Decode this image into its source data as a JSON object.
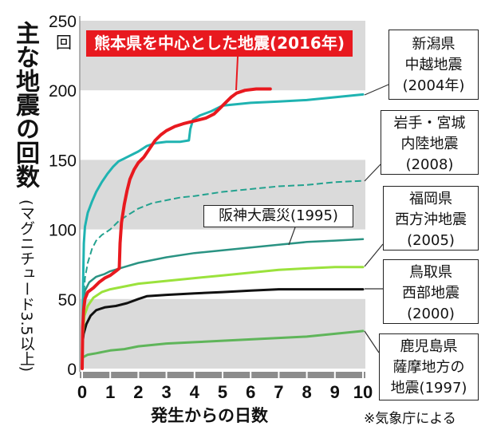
{
  "chart_data": {
    "type": "line",
    "y_label": "主な地震の回数",
    "y_label_note": "(マグニチュード3.5以上)",
    "y_unit": "回",
    "x_label": "発生からの日数",
    "source": "※気象庁による",
    "xlim": [
      0,
      10
    ],
    "ylim": [
      0,
      250
    ],
    "x_ticks": [
      0,
      1,
      2,
      3,
      4,
      5,
      6,
      7,
      8,
      9,
      10
    ],
    "y_ticks": [
      0,
      50,
      100,
      150,
      200,
      250
    ],
    "grid": false,
    "shaded_bands": [
      [
        0,
        50
      ],
      [
        100,
        150
      ],
      [
        200,
        250
      ]
    ],
    "band_color": "#dadada",
    "series": [
      {
        "name": "熊本県を中心とした地震(2016年)",
        "color": "#e8191f",
        "line_style": "solid",
        "points": [
          [
            0,
            0
          ],
          [
            0.02,
            30
          ],
          [
            0.05,
            42
          ],
          [
            0.1,
            50
          ],
          [
            0.2,
            55
          ],
          [
            0.4,
            58
          ],
          [
            0.6,
            62
          ],
          [
            0.8,
            65
          ],
          [
            1.0,
            67
          ],
          [
            1.2,
            70
          ],
          [
            1.32,
            72
          ],
          [
            1.35,
            90
          ],
          [
            1.4,
            105
          ],
          [
            1.5,
            118
          ],
          [
            1.6,
            128
          ],
          [
            1.7,
            136
          ],
          [
            1.85,
            143
          ],
          [
            2.0,
            148
          ],
          [
            2.2,
            152
          ],
          [
            2.4,
            158
          ],
          [
            2.6,
            164
          ],
          [
            2.8,
            168
          ],
          [
            3.0,
            171
          ],
          [
            3.3,
            174
          ],
          [
            3.6,
            176
          ],
          [
            4.0,
            178
          ],
          [
            4.4,
            180
          ],
          [
            4.7,
            183
          ],
          [
            4.9,
            187
          ],
          [
            5.1,
            191
          ],
          [
            5.3,
            195
          ],
          [
            5.5,
            198
          ],
          [
            5.8,
            200
          ],
          [
            6.2,
            201
          ],
          [
            6.7,
            201
          ]
        ]
      },
      {
        "name": "新潟県\n中越地震\n(2004年)",
        "color": "#1fb3b1",
        "line_style": "solid",
        "points": [
          [
            0,
            0
          ],
          [
            0.03,
            60
          ],
          [
            0.06,
            90
          ],
          [
            0.1,
            102
          ],
          [
            0.2,
            112
          ],
          [
            0.35,
            120
          ],
          [
            0.5,
            127
          ],
          [
            0.7,
            134
          ],
          [
            0.9,
            140
          ],
          [
            1.1,
            145
          ],
          [
            1.3,
            149
          ],
          [
            1.5,
            151
          ],
          [
            1.8,
            154
          ],
          [
            2.0,
            156
          ],
          [
            2.3,
            160
          ],
          [
            2.6,
            162
          ],
          [
            3.0,
            163
          ],
          [
            3.5,
            163
          ],
          [
            3.8,
            164
          ],
          [
            3.85,
            172
          ],
          [
            3.95,
            179
          ],
          [
            4.2,
            182
          ],
          [
            4.6,
            185
          ],
          [
            5.0,
            189
          ],
          [
            6.0,
            191
          ],
          [
            7.0,
            192
          ],
          [
            8.0,
            193
          ],
          [
            9.0,
            195
          ],
          [
            10,
            197
          ]
        ]
      },
      {
        "name": "岩手・宮城\n内陸地震\n(2008)",
        "color": "#23a28f",
        "line_style": "dashed",
        "points": [
          [
            0,
            0
          ],
          [
            0.02,
            30
          ],
          [
            0.05,
            50
          ],
          [
            0.1,
            65
          ],
          [
            0.2,
            76
          ],
          [
            0.35,
            86
          ],
          [
            0.5,
            92
          ],
          [
            0.7,
            96
          ],
          [
            1.0,
            100
          ],
          [
            1.3,
            106
          ],
          [
            1.6,
            110
          ],
          [
            2.0,
            115
          ],
          [
            2.5,
            119
          ],
          [
            3.0,
            121
          ],
          [
            3.5,
            123
          ],
          [
            4.0,
            124
          ],
          [
            5.0,
            127
          ],
          [
            6.0,
            129
          ],
          [
            7.0,
            131
          ],
          [
            8.0,
            132
          ],
          [
            9.0,
            134
          ],
          [
            10,
            135
          ]
        ]
      },
      {
        "name": "阪神大震災(1995)",
        "color": "#2a9383",
        "line_style": "solid",
        "points": [
          [
            0,
            0
          ],
          [
            0.02,
            30
          ],
          [
            0.05,
            48
          ],
          [
            0.1,
            56
          ],
          [
            0.25,
            62
          ],
          [
            0.5,
            66
          ],
          [
            0.8,
            68
          ],
          [
            1.0,
            70
          ],
          [
            1.5,
            73
          ],
          [
            2.0,
            76
          ],
          [
            2.5,
            78
          ],
          [
            3.0,
            80
          ],
          [
            4.0,
            83
          ],
          [
            5.0,
            85
          ],
          [
            6.0,
            87
          ],
          [
            7.0,
            89
          ],
          [
            8.0,
            91
          ],
          [
            9.0,
            92
          ],
          [
            10,
            93
          ]
        ]
      },
      {
        "name": "福岡県\n西方沖地震\n(2005)",
        "color": "#9be23c",
        "line_style": "solid",
        "points": [
          [
            0,
            0
          ],
          [
            0.03,
            25
          ],
          [
            0.08,
            38
          ],
          [
            0.2,
            45
          ],
          [
            0.4,
            51
          ],
          [
            0.7,
            55
          ],
          [
            1.0,
            57
          ],
          [
            1.5,
            59
          ],
          [
            2.0,
            61
          ],
          [
            3.0,
            63
          ],
          [
            4.0,
            65
          ],
          [
            5.0,
            67
          ],
          [
            6.0,
            69
          ],
          [
            7.0,
            71
          ],
          [
            8.0,
            72
          ],
          [
            9.0,
            73
          ],
          [
            10,
            73
          ]
        ]
      },
      {
        "name": "鳥取県\n西部地震\n(2000)",
        "color": "#111111",
        "line_style": "solid",
        "points": [
          [
            0,
            0
          ],
          [
            0.01,
            18
          ],
          [
            0.05,
            25
          ],
          [
            0.15,
            32
          ],
          [
            0.3,
            38
          ],
          [
            0.5,
            42
          ],
          [
            0.8,
            44
          ],
          [
            1.2,
            45
          ],
          [
            1.6,
            47
          ],
          [
            2.0,
            50
          ],
          [
            2.3,
            52
          ],
          [
            3.0,
            53
          ],
          [
            4.0,
            54
          ],
          [
            5.0,
            55
          ],
          [
            6.0,
            56
          ],
          [
            7.0,
            57
          ],
          [
            10,
            57
          ]
        ]
      },
      {
        "name": "鹿児島県\n薩摩地方の\n地震(1997)",
        "color": "#5fb55a",
        "line_style": "solid",
        "points": [
          [
            0,
            0
          ],
          [
            0.02,
            8
          ],
          [
            0.2,
            10
          ],
          [
            0.5,
            11
          ],
          [
            1.0,
            13
          ],
          [
            1.5,
            14
          ],
          [
            2.0,
            16
          ],
          [
            2.5,
            17
          ],
          [
            3.0,
            18
          ],
          [
            4.0,
            19
          ],
          [
            5.0,
            20
          ],
          [
            6.0,
            21
          ],
          [
            7.0,
            22
          ],
          [
            8.0,
            23
          ],
          [
            9.0,
            25
          ],
          [
            10,
            27
          ]
        ]
      }
    ]
  }
}
